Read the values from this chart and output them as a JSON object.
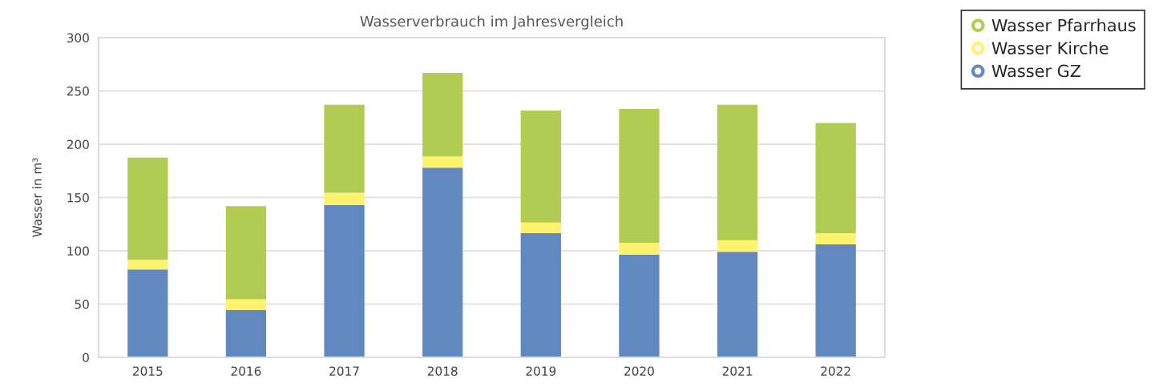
{
  "chart_data": {
    "type": "bar",
    "title": "Wasserverbrauch im Jahresvergleich",
    "ylabel": "Wasser in m³",
    "categories": [
      "2015",
      "2016",
      "2017",
      "2018",
      "2019",
      "2020",
      "2021",
      "2022"
    ],
    "stacked": true,
    "ylim": [
      0,
      300
    ],
    "yticks": [
      0,
      50,
      100,
      150,
      200,
      250,
      300
    ],
    "grid": "y",
    "legend": "top right",
    "marker": "circle",
    "series": [
      {
        "name": "Wasser GZ",
        "color": "#6289bf",
        "values": [
          82.5,
          44.5,
          143,
          178,
          116.5,
          96.5,
          99,
          106
        ]
      },
      {
        "name": "Wasser Kirche",
        "color": "#fff26e",
        "values": [
          9,
          10,
          11.5,
          10.5,
          10,
          11,
          11,
          10.5
        ]
      },
      {
        "name": "Wasser Pfarrhaus",
        "color": "#b1cb53",
        "values": [
          96,
          87.5,
          82.5,
          78.5,
          105,
          125.5,
          127,
          103.5
        ]
      }
    ]
  }
}
